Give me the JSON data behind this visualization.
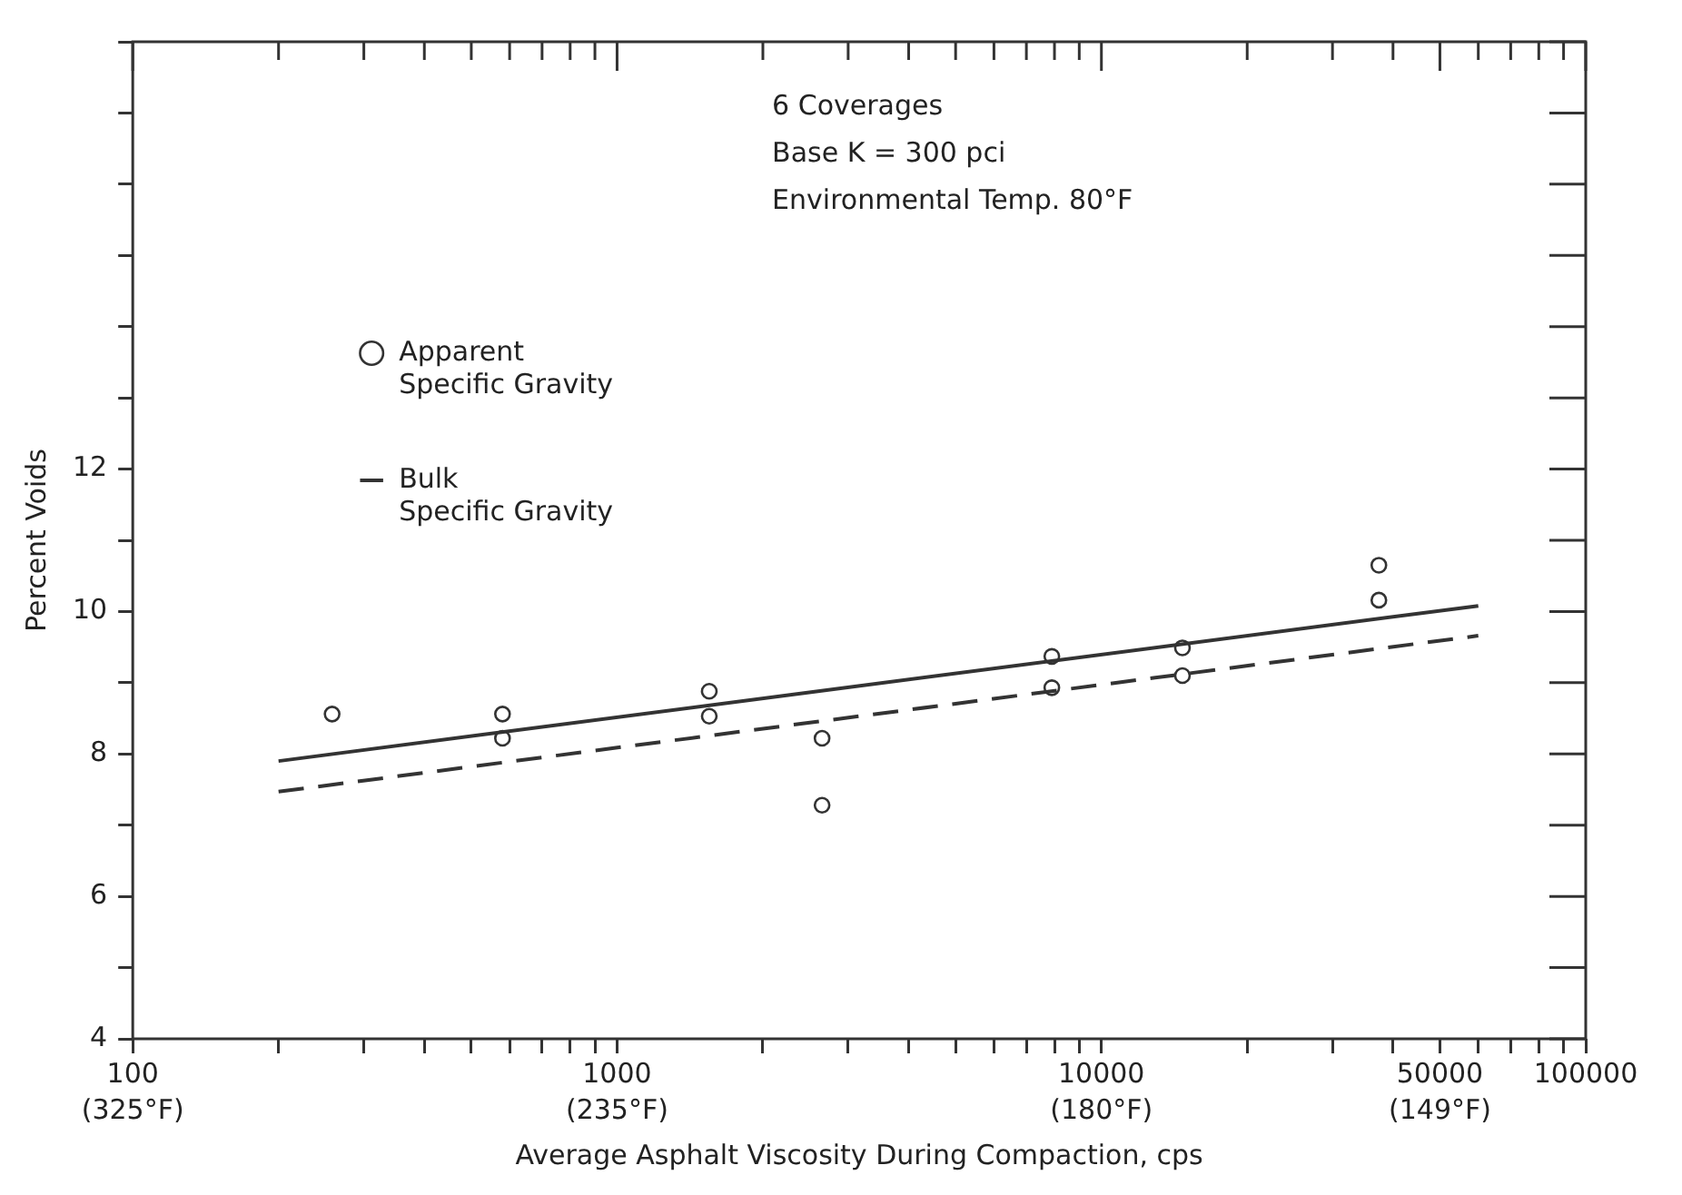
{
  "chart_data": {
    "type": "line",
    "xlabel": "Average Asphalt Viscosity During Compaction, cps",
    "ylabel": "Percent Voids",
    "annotations": [
      "6 Coverages",
      "Base K = 300 pci",
      "Environmental Temp. 80°F",
      "(325°F)",
      "(235°F)",
      "(180°F)",
      "(149°F)"
    ],
    "log": "x",
    "grid": false,
    "legend": "top left",
    "xlim": [
      100,
      100000
    ],
    "ylim": [
      4,
      18
    ],
    "xticks": [
      100,
      {
        "value": 200,
        "label": null
      },
      {
        "value": 300,
        "label": null
      },
      {
        "value": 400,
        "label": null
      },
      {
        "value": 500,
        "label": null
      },
      {
        "value": 600,
        "label": null
      },
      {
        "value": 700,
        "label": null
      },
      {
        "value": 800,
        "label": null
      },
      {
        "value": 900,
        "label": null
      },
      1000,
      {
        "value": 2000,
        "label": null
      },
      {
        "value": 3000,
        "label": null
      },
      {
        "value": 4000,
        "label": null
      },
      {
        "value": 5000,
        "label": null
      },
      {
        "value": 6000,
        "label": null
      },
      {
        "value": 7000,
        "label": null
      },
      {
        "value": 8000,
        "label": null
      },
      {
        "value": 9000,
        "label": null
      },
      10000,
      {
        "value": 20000,
        "label": null
      },
      {
        "value": 30000,
        "label": null
      },
      {
        "value": 40000,
        "label": null
      },
      50000,
      {
        "value": 60000,
        "label": null
      },
      {
        "value": 70000,
        "label": null
      },
      {
        "value": 80000,
        "label": null
      },
      {
        "value": 90000,
        "label": null
      },
      100000
    ],
    "yticks": [
      4,
      {
        "value": 5,
        "label": null
      },
      6,
      {
        "value": 7,
        "label": null
      },
      8,
      {
        "value": 9,
        "label": null
      },
      10,
      {
        "value": 11,
        "label": null
      },
      12,
      {
        "value": 13,
        "label": null
      },
      {
        "value": 14,
        "label": null
      },
      {
        "value": 15,
        "label": null
      },
      {
        "value": 16,
        "label": null
      },
      {
        "value": 17,
        "label": null
      },
      {
        "value": 18,
        "label": null
      }
    ],
    "series": [
      {
        "type": "scatter",
        "name": "Apparent Specific Gravity",
        "marker": "circle",
        "color": "#333333",
        "x": [
          258,
          580,
          580,
          1550,
          1550,
          2650,
          2650,
          7900,
          7900,
          14700,
          14700,
          37400,
          37400
        ],
        "values": [
          8.56,
          8.56,
          8.22,
          8.88,
          8.53,
          8.22,
          7.28,
          9.37,
          8.93,
          9.49,
          9.1,
          10.65,
          10.16
        ]
      },
      {
        "color": "#333333",
        "line_style": "solid",
        "x": [
          200,
          60000
        ],
        "values": [
          7.9,
          10.08
        ]
      },
      {
        "name": "Bulk Specific Gravity",
        "color": "#333333",
        "line_style": "dashed",
        "x": [
          200,
          60000
        ],
        "values": [
          7.47,
          9.66
        ]
      }
    ]
  }
}
